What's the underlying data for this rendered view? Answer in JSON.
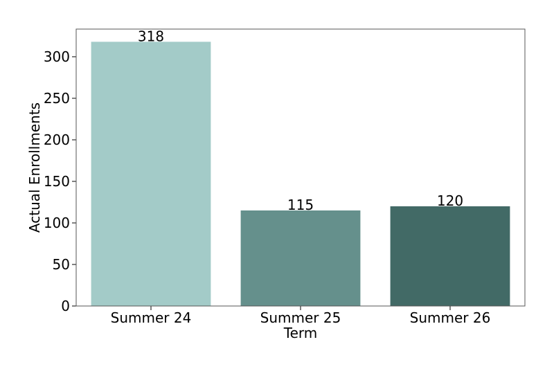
{
  "chart_data": {
    "type": "bar",
    "x_label": "Term",
    "y_label": "Actual Enrollments",
    "categories": [
      "Summer 24",
      "Summer 25",
      "Summer 26"
    ],
    "values": [
      318,
      115,
      120
    ],
    "colors": [
      "#a3cbc8",
      "#65908c",
      "#426a66"
    ],
    "ylim": [
      0,
      333.3
    ],
    "yticks": [
      0,
      50,
      100,
      150,
      200,
      250,
      300
    ],
    "grid": false
  }
}
